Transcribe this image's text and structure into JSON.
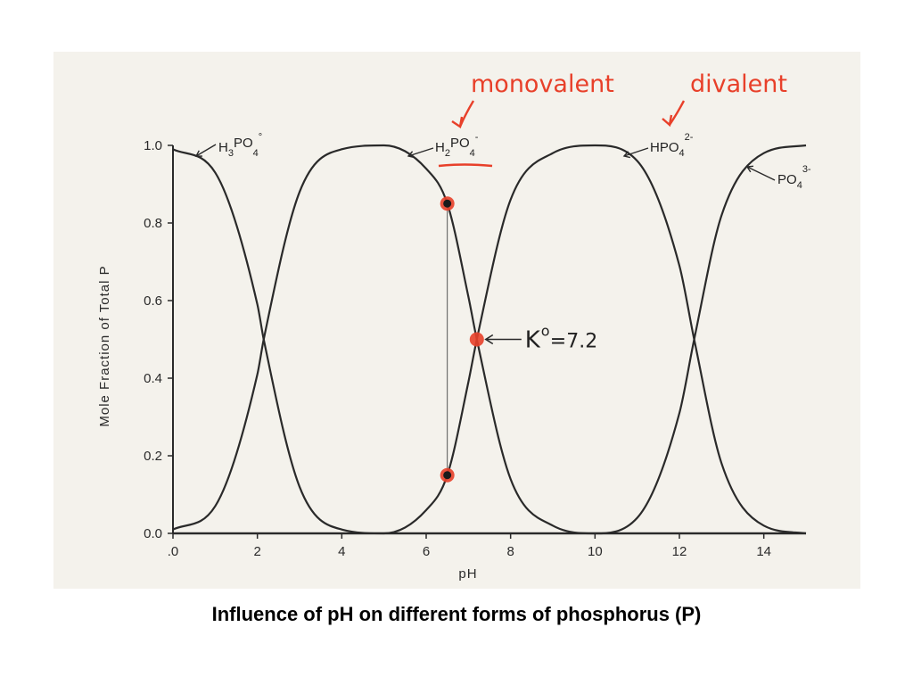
{
  "caption": "Influence of pH on different forms of phosphorus (P)",
  "chart_data": {
    "type": "line",
    "xlabel": "pH",
    "ylabel": "Mole Fraction of Total P",
    "xlim": [
      0,
      15
    ],
    "ylim": [
      0,
      1
    ],
    "x_ticks": [
      0,
      2,
      4,
      6,
      8,
      10,
      12,
      14
    ],
    "x_tick_labels": [
      ".0",
      "2",
      "4",
      "6",
      "8",
      "10",
      "12",
      "14"
    ],
    "y_ticks": [
      0,
      0.2,
      0.4,
      0.6,
      0.8,
      1.0
    ],
    "y_tick_labels": [
      "0.0",
      "0.2",
      "0.4",
      "0.6",
      "0.8",
      "1.0"
    ],
    "pKa": [
      2.15,
      7.2,
      12.35
    ],
    "series": [
      {
        "label": {
          "base": "H",
          "s1": "3",
          "mid": "PO",
          "s2": "4",
          "sup": "°"
        },
        "x": [
          0,
          1,
          2,
          2.15,
          3,
          4,
          5,
          6,
          7,
          15
        ],
        "y": [
          0.99,
          0.93,
          0.59,
          0.5,
          0.12,
          0.01,
          0,
          0,
          0,
          0
        ]
      },
      {
        "label": {
          "base": "H",
          "s1": "2",
          "mid": "PO",
          "s2": "4",
          "sup": "-"
        },
        "x": [
          0,
          1,
          2,
          2.15,
          3,
          4,
          5,
          6,
          6.5,
          7,
          7.2,
          8,
          9,
          10,
          15
        ],
        "y": [
          0.01,
          0.07,
          0.41,
          0.5,
          0.88,
          0.99,
          1.0,
          0.94,
          0.85,
          0.61,
          0.5,
          0.14,
          0.02,
          0,
          0
        ]
      },
      {
        "label": {
          "base": "HPO",
          "s1": "",
          "mid": "",
          "s2": "4",
          "sup": "2-"
        },
        "x": [
          0,
          5,
          6,
          6.5,
          7,
          7.2,
          8,
          9,
          10,
          11,
          12,
          12.35,
          13,
          14,
          15
        ],
        "y": [
          0,
          0,
          0.06,
          0.15,
          0.39,
          0.5,
          0.86,
          0.98,
          1.0,
          0.96,
          0.69,
          0.5,
          0.18,
          0.02,
          0
        ]
      },
      {
        "label": {
          "base": "PO",
          "s1": "",
          "mid": "",
          "s2": "4",
          "sup": "3-"
        },
        "x": [
          0,
          10,
          11,
          12,
          12.35,
          13,
          14,
          15
        ],
        "y": [
          0,
          0,
          0.04,
          0.31,
          0.5,
          0.82,
          0.98,
          1.0
        ]
      }
    ],
    "annotations": {
      "monovalent": "monovalent",
      "divalent": "divalent",
      "pk_symbol": "K",
      "pk_sup": "o",
      "pk_value": "=7.2",
      "vertical_line_x": 6.5,
      "red_points": [
        {
          "x": 6.5,
          "y": 0.85
        },
        {
          "x": 6.5,
          "y": 0.15
        },
        {
          "x": 7.2,
          "y": 0.5
        }
      ]
    },
    "colors": {
      "line": "#2a2a2a",
      "highlight": "#e8402a",
      "figure_bg": "#f4f2ec"
    }
  }
}
